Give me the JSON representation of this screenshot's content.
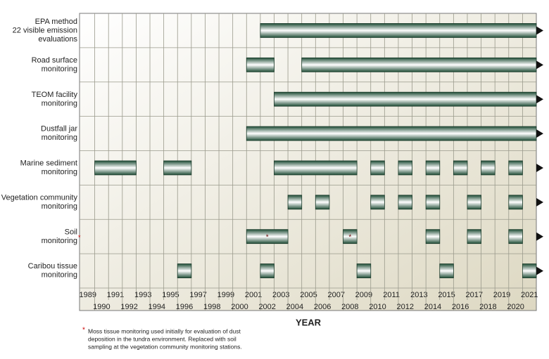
{
  "chart_data": {
    "type": "timeline",
    "x_title": "YEAR",
    "categories": [
      1989,
      1990,
      1991,
      1992,
      1993,
      1994,
      1995,
      1996,
      1997,
      1998,
      1999,
      2000,
      2001,
      2002,
      2003,
      2004,
      2005,
      2006,
      2007,
      2008,
      2009,
      2010,
      2011,
      2012,
      2013,
      2014,
      2015,
      2016,
      2017,
      2018,
      2019,
      2020,
      2021
    ],
    "bar_color": "#1f4d36",
    "rows": [
      {
        "label": [
          "EPA method",
          "22 visible emission",
          "evaluations"
        ],
        "ongoing": true,
        "spans": [
          {
            "start": 2002,
            "end": 2021
          }
        ]
      },
      {
        "label": [
          "Road surface",
          "monitoring"
        ],
        "ongoing": true,
        "spans": [
          {
            "start": 2001,
            "end": 2002
          },
          {
            "start": 2005,
            "end": 2021
          }
        ]
      },
      {
        "label": [
          "TEOM facility",
          "monitoring"
        ],
        "ongoing": true,
        "spans": [
          {
            "start": 2003,
            "end": 2021
          }
        ]
      },
      {
        "label": [
          "Dustfall jar",
          "monitoring"
        ],
        "ongoing": true,
        "spans": [
          {
            "start": 2001,
            "end": 2021
          }
        ]
      },
      {
        "label": [
          "Marine sediment",
          "monitoring"
        ],
        "ongoing": true,
        "spans": [
          {
            "start": 1990,
            "end": 1992
          },
          {
            "start": 1995,
            "end": 1996
          },
          {
            "start": 2003,
            "end": 2008
          },
          {
            "start": 2010,
            "end": 2010
          },
          {
            "start": 2012,
            "end": 2012
          },
          {
            "start": 2014,
            "end": 2014
          },
          {
            "start": 2016,
            "end": 2016
          },
          {
            "start": 2018,
            "end": 2018
          },
          {
            "start": 2020,
            "end": 2020
          }
        ]
      },
      {
        "label": [
          "Vegetation community",
          "monitoring"
        ],
        "ongoing": true,
        "spans": [
          {
            "start": 2004,
            "end": 2004
          },
          {
            "start": 2006,
            "end": 2006
          },
          {
            "start": 2010,
            "end": 2010
          },
          {
            "start": 2012,
            "end": 2012
          },
          {
            "start": 2014,
            "end": 2014
          },
          {
            "start": 2017,
            "end": 2017
          },
          {
            "start": 2020,
            "end": 2020
          }
        ]
      },
      {
        "label": [
          "Soil",
          "monitoring"
        ],
        "label_marker": "*",
        "ongoing": true,
        "spans": [
          {
            "start": 2001,
            "end": 2003,
            "marker": "*"
          },
          {
            "start": 2008,
            "end": 2008,
            "marker": "*"
          },
          {
            "start": 2014,
            "end": 2014
          },
          {
            "start": 2017,
            "end": 2017
          },
          {
            "start": 2020,
            "end": 2020
          }
        ]
      },
      {
        "label": [
          "Caribou tissue",
          "monitoring"
        ],
        "ongoing": true,
        "spans": [
          {
            "start": 1996,
            "end": 1996
          },
          {
            "start": 2002,
            "end": 2002
          },
          {
            "start": 2009,
            "end": 2009
          },
          {
            "start": 2015,
            "end": 2015
          },
          {
            "start": 2021,
            "end": 2021
          }
        ]
      }
    ],
    "footnote": {
      "marker": "*",
      "lines": [
        "Moss tissue monitoring used initially for evaluation of dust",
        "deposition in the tundra environment.  Replaced with soil",
        "sampling at the vegetation community monitoring stations."
      ]
    }
  }
}
